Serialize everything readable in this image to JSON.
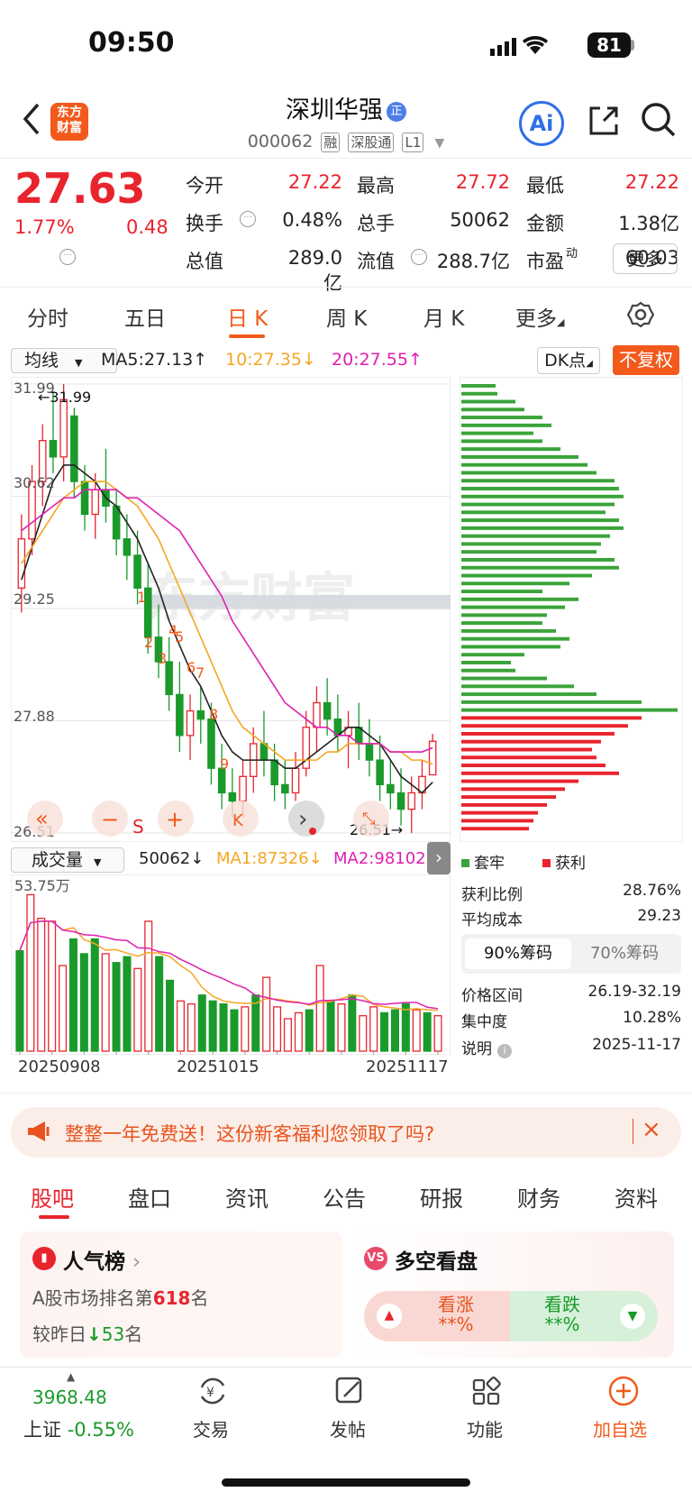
{
  "status": {
    "time": "09:50",
    "battery": "81"
  },
  "header": {
    "logo_line1": "东方",
    "logo_line2": "财富",
    "title": "深圳华强",
    "title_badge": "正",
    "code": "000062",
    "tags": [
      "融",
      "深股通",
      "L1"
    ],
    "ai_label": "Ai"
  },
  "quote": {
    "price": "27.63",
    "pct": "1.77%",
    "change": "0.48",
    "fields": [
      {
        "label": "今开",
        "value": "27.22",
        "color": "#e8242d"
      },
      {
        "label": "最高",
        "value": "27.72",
        "color": "#e8242d"
      },
      {
        "label": "最低",
        "value": "27.22",
        "color": "#e8242d"
      },
      {
        "label": "换手",
        "value": "0.48%",
        "color": "#222222"
      },
      {
        "label": "总手",
        "value": "50062",
        "color": "#222222"
      },
      {
        "label": "金额",
        "value": "1.38亿",
        "color": "#222222"
      },
      {
        "label": "总值",
        "value": "289.0亿",
        "color": "#222222"
      },
      {
        "label": "流值",
        "value": "288.7亿",
        "color": "#222222"
      },
      {
        "label": "市盈",
        "label_sup": "动",
        "value": "60.03",
        "color": "#222222"
      }
    ],
    "more": "更多"
  },
  "chart_tabs": [
    "分时",
    "五日",
    "日 K",
    "周 K",
    "月 K",
    "更多"
  ],
  "ma_row": {
    "selector": "均线",
    "ma5": "MA5:27.13",
    "ma5_arrow": "↑",
    "ma10": "10:27.35",
    "ma10_arrow": "↓",
    "ma20": "20:27.55",
    "ma20_arrow": "↑",
    "dk": "DK点",
    "fq": "不复权",
    "colors": {
      "ma5": "#222222",
      "ma10": "#f5a623",
      "ma20": "#e020b0"
    }
  },
  "kline_labels": {
    "y_top": "31.99",
    "y2": "30.62",
    "y3": "29.25",
    "y4": "27.88",
    "y_bottom": "26.51",
    "max_marker": "←31.99",
    "min_marker": "26.51→",
    "watermark": "东方财富",
    "signals": [
      "1",
      "2",
      "3",
      "4",
      "5",
      "6",
      "7",
      "8",
      "9"
    ],
    "toolbar": {
      "back": "«",
      "minus": "−",
      "s": "S",
      "plus": "+",
      "k": "K",
      "next": "›"
    }
  },
  "chart_data": [
    {
      "type": "candlestick",
      "title": "",
      "ylim": [
        26.51,
        31.99
      ],
      "yticks": [
        31.99,
        30.62,
        29.25,
        27.88,
        26.51
      ],
      "ohlc": [
        [
          29.5,
          30.4,
          29.2,
          30.1
        ],
        [
          30.1,
          31.0,
          29.9,
          30.8
        ],
        [
          30.8,
          31.5,
          30.5,
          31.3
        ],
        [
          31.3,
          31.9,
          30.9,
          31.1
        ],
        [
          31.1,
          31.99,
          30.8,
          31.8
        ],
        [
          31.6,
          31.7,
          30.6,
          30.8
        ],
        [
          30.8,
          31.0,
          30.2,
          30.4
        ],
        [
          30.4,
          30.9,
          30.1,
          30.7
        ],
        [
          30.7,
          31.2,
          30.3,
          30.5
        ],
        [
          30.5,
          30.7,
          29.9,
          30.1
        ],
        [
          30.1,
          30.4,
          29.6,
          29.9
        ],
        [
          29.9,
          30.2,
          29.3,
          29.5
        ],
        [
          29.5,
          29.8,
          28.7,
          28.9
        ],
        [
          28.9,
          29.3,
          28.4,
          28.6
        ],
        [
          28.6,
          28.9,
          28.0,
          28.2
        ],
        [
          28.2,
          28.6,
          27.5,
          27.7
        ],
        [
          27.7,
          28.2,
          27.4,
          28.0
        ],
        [
          28.0,
          28.3,
          27.6,
          27.9
        ],
        [
          27.9,
          28.1,
          27.1,
          27.3
        ],
        [
          27.3,
          27.6,
          26.8,
          27.0
        ],
        [
          27.0,
          27.3,
          26.7,
          26.9
        ],
        [
          26.9,
          27.4,
          26.7,
          27.2
        ],
        [
          27.2,
          27.8,
          27.0,
          27.6
        ],
        [
          27.6,
          28.0,
          27.2,
          27.4
        ],
        [
          27.4,
          27.6,
          26.9,
          27.1
        ],
        [
          27.1,
          27.4,
          26.8,
          27.0
        ],
        [
          27.0,
          27.5,
          26.9,
          27.3
        ],
        [
          27.3,
          28.0,
          27.2,
          27.8
        ],
        [
          27.8,
          28.3,
          27.5,
          28.1
        ],
        [
          28.1,
          28.4,
          27.7,
          27.9
        ],
        [
          27.9,
          28.2,
          27.5,
          27.7
        ],
        [
          27.7,
          28.0,
          27.3,
          27.8
        ],
        [
          27.8,
          28.1,
          27.4,
          27.6
        ],
        [
          27.6,
          27.9,
          27.2,
          27.4
        ],
        [
          27.4,
          27.7,
          26.9,
          27.1
        ],
        [
          27.1,
          27.4,
          26.8,
          27.0
        ],
        [
          27.0,
          27.3,
          26.6,
          26.8
        ],
        [
          26.8,
          27.2,
          26.51,
          27.0
        ],
        [
          27.0,
          27.4,
          26.8,
          27.2
        ],
        [
          27.22,
          27.72,
          27.22,
          27.63
        ]
      ],
      "ma5": [
        29.6,
        30.0,
        30.4,
        30.8,
        31.0,
        31.0,
        30.9,
        30.8,
        30.6,
        30.5,
        30.3,
        30.1,
        29.8,
        29.5,
        29.1,
        28.8,
        28.5,
        28.3,
        28.0,
        27.7,
        27.5,
        27.4,
        27.4,
        27.4,
        27.4,
        27.3,
        27.3,
        27.4,
        27.5,
        27.6,
        27.7,
        27.8,
        27.8,
        27.7,
        27.6,
        27.4,
        27.2,
        27.1,
        27.0,
        27.13
      ],
      "ma10": [
        29.8,
        30.0,
        30.2,
        30.4,
        30.6,
        30.7,
        30.8,
        30.8,
        30.8,
        30.7,
        30.6,
        30.5,
        30.3,
        30.1,
        29.8,
        29.5,
        29.2,
        28.9,
        28.6,
        28.3,
        28.0,
        27.8,
        27.7,
        27.6,
        27.5,
        27.4,
        27.4,
        27.4,
        27.4,
        27.5,
        27.5,
        27.6,
        27.6,
        27.6,
        27.6,
        27.5,
        27.5,
        27.4,
        27.4,
        27.35
      ],
      "ma20": [
        30.2,
        30.3,
        30.4,
        30.5,
        30.6,
        30.6,
        30.7,
        30.7,
        30.7,
        30.7,
        30.6,
        30.6,
        30.5,
        30.4,
        30.3,
        30.2,
        30.0,
        29.8,
        29.6,
        29.4,
        29.1,
        28.9,
        28.7,
        28.5,
        28.3,
        28.1,
        28.0,
        27.9,
        27.8,
        27.8,
        27.7,
        27.7,
        27.6,
        27.6,
        27.6,
        27.5,
        27.5,
        27.5,
        27.5,
        27.55
      ]
    },
    {
      "type": "bar",
      "title": "成交量",
      "ymax_label": "53.75万",
      "ylim": [
        0,
        53.75
      ],
      "values": [
        34,
        53,
        45,
        44,
        29,
        38,
        33,
        38,
        33,
        30,
        32,
        28,
        44,
        32,
        24,
        17,
        16,
        19,
        17,
        16,
        14,
        15,
        19,
        25,
        15,
        11,
        13,
        14,
        29,
        17,
        16,
        19,
        12,
        15,
        13,
        14,
        16,
        14,
        13,
        12
      ],
      "colors": [
        "g",
        "r",
        "r",
        "r",
        "r",
        "g",
        "g",
        "g",
        "r",
        "g",
        "g",
        "r",
        "r",
        "g",
        "g",
        "r",
        "r",
        "g",
        "g",
        "g",
        "g",
        "r",
        "g",
        "r",
        "r",
        "r",
        "r",
        "g",
        "r",
        "g",
        "r",
        "g",
        "r",
        "r",
        "g",
        "g",
        "g",
        "r",
        "g",
        "r"
      ]
    }
  ],
  "volume_row": {
    "selector": "成交量",
    "vol": "50062",
    "vol_arrow": "↓",
    "ma1": "MA1:87326",
    "ma1_arrow": "↓",
    "ma2": "MA2:98102",
    "colors": {
      "ma1": "#f5a623",
      "ma2": "#e020b0"
    }
  },
  "dates": [
    "20250908",
    "20251015",
    "20251117"
  ],
  "chips": {
    "legend_trapped": "套牢",
    "legend_profit": "获利",
    "stats": [
      {
        "label": "获利比例",
        "value": "28.76%"
      },
      {
        "label": "平均成本",
        "value": "29.23"
      }
    ],
    "tabs": [
      "90%筹码",
      "70%筹码"
    ],
    "stats2": [
      {
        "label": "价格区间",
        "value": "26.19-32.19"
      },
      {
        "label": "集中度",
        "value": "10.28%"
      },
      {
        "label": "说明",
        "value": "2025-11-17"
      }
    ],
    "green_bars": [
      38,
      40,
      60,
      70,
      90,
      100,
      80,
      90,
      110,
      130,
      140,
      150,
      170,
      175,
      180,
      170,
      160,
      175,
      180,
      165,
      155,
      150,
      170,
      175,
      145,
      120,
      90,
      130,
      115,
      95,
      90,
      105,
      120,
      110,
      70,
      55,
      60,
      95,
      125,
      150,
      200,
      240
    ],
    "red_bars": [
      200,
      185,
      170,
      155,
      145,
      150,
      160,
      175,
      130,
      115,
      105,
      95,
      85,
      80,
      75
    ]
  },
  "promo": {
    "text": "整整一年免费送！这份新客福利您领取了吗?",
    "close": "×"
  },
  "section_tabs": [
    "股吧",
    "盘口",
    "资讯",
    "公告",
    "研报",
    "财务",
    "资料"
  ],
  "cards": {
    "popularity": {
      "title": "人气榜",
      "line1_pre": "A股市场排名第",
      "rank": "618",
      "line1_post": "名",
      "line2_pre": "较昨日",
      "arrow": "↓",
      "delta": "53",
      "line2_post": "名"
    },
    "sentiment": {
      "title": "多空看盘",
      "icon": "VS",
      "rise": "看涨",
      "rise_val": "**%",
      "fall": "看跌",
      "fall_val": "**%"
    }
  },
  "bottom_nav": {
    "index_value": "3968.48",
    "index_name": "上证",
    "index_pct": "-0.55%",
    "items": [
      "交易",
      "发帖",
      "功能",
      "加自选"
    ]
  }
}
